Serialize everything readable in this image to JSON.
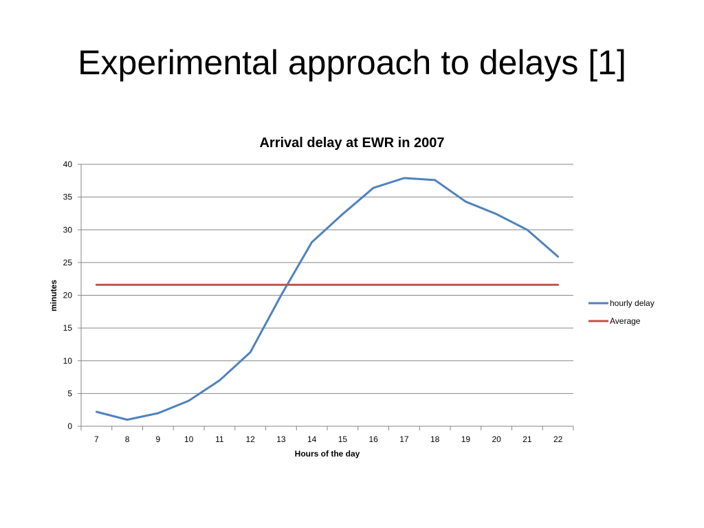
{
  "slide": {
    "title": "Experimental approach to delays [1]"
  },
  "chart_data": {
    "type": "line",
    "title": "Arrival delay at EWR in 2007",
    "xlabel": "Hours of the day",
    "ylabel": "minutes",
    "categories": [
      "7",
      "8",
      "9",
      "10",
      "11",
      "12",
      "13",
      "14",
      "15",
      "16",
      "17",
      "18",
      "19",
      "20",
      "21",
      "22"
    ],
    "ylim": [
      0,
      40
    ],
    "yticks": [
      0,
      5,
      10,
      15,
      20,
      25,
      30,
      35,
      40
    ],
    "grid": true,
    "legend_position": "right",
    "series": [
      {
        "name": "hourly delay",
        "color": "#4F81BD",
        "values": [
          2.2,
          1.0,
          2.0,
          3.9,
          7.0,
          11.3,
          20.0,
          28.1,
          32.4,
          36.4,
          37.9,
          37.6,
          34.3,
          32.4,
          30.0,
          25.9
        ]
      },
      {
        "name": "Average",
        "color": "#C0504D",
        "values": [
          21.6,
          21.6,
          21.6,
          21.6,
          21.6,
          21.6,
          21.6,
          21.6,
          21.6,
          21.6,
          21.6,
          21.6,
          21.6,
          21.6,
          21.6,
          21.6
        ]
      }
    ]
  }
}
